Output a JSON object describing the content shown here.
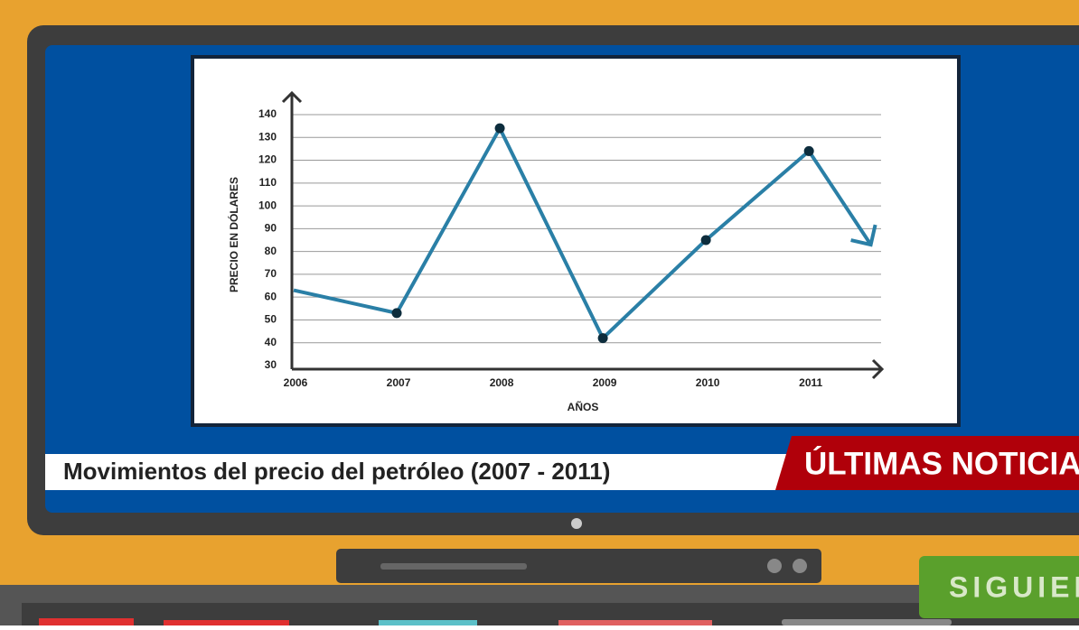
{
  "chart_data": {
    "type": "line",
    "x_label": "AÑOS",
    "y_label": "PRECIO EN DÓLARES",
    "x": [
      2006,
      2007,
      2008,
      2009,
      2010,
      2011,
      2011.6
    ],
    "values": [
      63,
      53,
      134,
      42,
      85,
      124,
      83
    ],
    "color": "#2a7fa6",
    "marker_color": "#0d2d3d",
    "xlim": [
      2006,
      2011.7
    ],
    "xticks": [
      2006,
      2007,
      2008,
      2009,
      2010,
      2011
    ],
    "ylim": [
      30,
      140
    ],
    "yticks": [
      30,
      40,
      50,
      60,
      70,
      80,
      90,
      100,
      110,
      120,
      130,
      140
    ],
    "grid": true
  },
  "caption": "Movimientos del precio del petróleo (2007 - 2011)",
  "banner": "ÚLTIMAS NOTICIAS",
  "button": "SIGUIENTE"
}
